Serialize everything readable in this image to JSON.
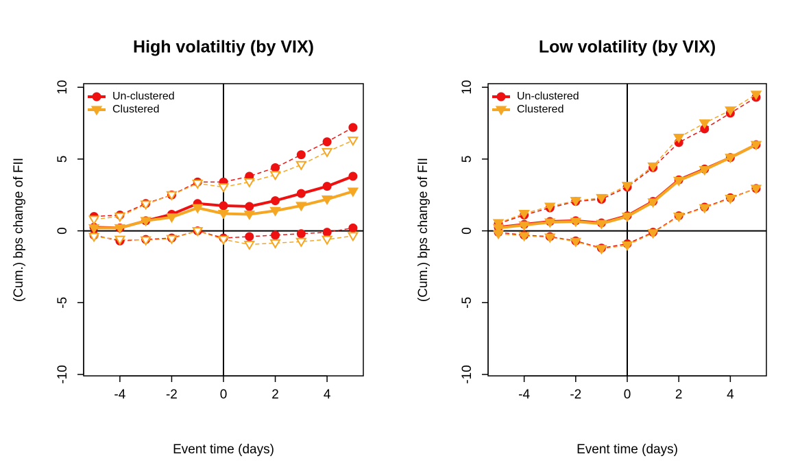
{
  "chart_data": [
    {
      "type": "line",
      "title": "High volatiltiy (by VIX)",
      "x_label": "Event time (days)",
      "y_label": "(Cum.) bps change of FII",
      "x": [
        -5,
        -4,
        -3,
        -2,
        -1,
        0,
        1,
        2,
        3,
        4,
        5
      ],
      "xlim": [
        -5.4,
        5.4
      ],
      "xticks": [
        -4,
        -2,
        0,
        2,
        4
      ],
      "ylim": [
        -10.1,
        10.25
      ],
      "yticks": [
        -10,
        -5,
        0,
        5,
        10
      ],
      "vline": 0,
      "hline": 0,
      "legend": "topleft",
      "series": [
        {
          "name": "Un-clustered",
          "color": "#ee1111",
          "marker": "circle",
          "band_marker_fill": true,
          "values": [
            0.25,
            0.2,
            0.7,
            1.15,
            1.9,
            1.75,
            1.7,
            2.1,
            2.6,
            3.1,
            3.8
          ],
          "upper": [
            1.0,
            1.1,
            1.9,
            2.5,
            3.4,
            3.4,
            3.8,
            4.4,
            5.3,
            6.2,
            7.2
          ],
          "lower": [
            -0.3,
            -0.7,
            -0.6,
            -0.5,
            0.0,
            -0.5,
            -0.4,
            -0.3,
            -0.2,
            -0.1,
            0.2
          ]
        },
        {
          "name": "Clustered",
          "color": "#f5a623",
          "marker": "triangle",
          "band_marker_fill": false,
          "values": [
            0.2,
            0.2,
            0.7,
            0.95,
            1.6,
            1.2,
            1.15,
            1.4,
            1.75,
            2.2,
            2.75
          ],
          "upper": [
            0.8,
            1.0,
            1.85,
            2.5,
            3.3,
            3.05,
            3.4,
            3.9,
            4.6,
            5.5,
            6.3
          ],
          "lower": [
            -0.4,
            -0.6,
            -0.65,
            -0.55,
            0.0,
            -0.6,
            -0.95,
            -0.85,
            -0.75,
            -0.6,
            -0.35
          ]
        }
      ]
    },
    {
      "type": "line",
      "title": "Low volatility (by VIX)",
      "x_label": "Event time (days)",
      "y_label": "(Cum.) bps change of FII",
      "x": [
        -5,
        -4,
        -3,
        -2,
        -1,
        0,
        1,
        2,
        3,
        4,
        5
      ],
      "xlim": [
        -5.4,
        5.4
      ],
      "xticks": [
        -4,
        -2,
        0,
        2,
        4
      ],
      "ylim": [
        -10.1,
        10.25
      ],
      "yticks": [
        -10,
        -5,
        0,
        5,
        10
      ],
      "vline": 0,
      "hline": 0,
      "legend": "topleft",
      "series": [
        {
          "name": "Un-clustered",
          "color": "#ee1111",
          "marker": "circle",
          "band_marker_fill": true,
          "values": [
            0.25,
            0.45,
            0.65,
            0.7,
            0.55,
            1.05,
            2.05,
            3.55,
            4.3,
            5.1,
            6.0
          ],
          "upper": [
            0.5,
            1.1,
            1.6,
            2.05,
            2.2,
            3.05,
            4.4,
            6.15,
            7.1,
            8.2,
            9.3
          ],
          "lower": [
            -0.1,
            -0.3,
            -0.4,
            -0.7,
            -1.2,
            -0.9,
            -0.1,
            1.05,
            1.65,
            2.3,
            2.95
          ]
        },
        {
          "name": "Clustered",
          "color": "#f5a623",
          "marker": "triangle",
          "band_marker_fill": true,
          "values": [
            0.2,
            0.4,
            0.6,
            0.65,
            0.5,
            1.0,
            2.0,
            3.5,
            4.25,
            5.1,
            6.0
          ],
          "upper": [
            0.55,
            1.2,
            1.7,
            2.1,
            2.3,
            3.15,
            4.5,
            6.5,
            7.5,
            8.4,
            9.5
          ],
          "lower": [
            -0.2,
            -0.35,
            -0.45,
            -0.75,
            -1.25,
            -1.0,
            -0.15,
            1.0,
            1.6,
            2.25,
            2.95
          ]
        }
      ]
    }
  ]
}
